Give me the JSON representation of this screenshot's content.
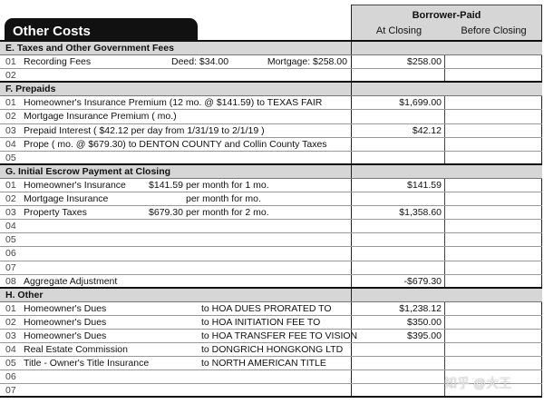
{
  "title": "Other Costs",
  "columns": {
    "group": "Borrower-Paid",
    "at_closing": "At Closing",
    "before_closing": "Before Closing"
  },
  "sections": [
    {
      "title": "E. Taxes and Other Government Fees",
      "rows": [
        {
          "num": "01",
          "label": "Recording Fees",
          "deed": "Deed: $34.00",
          "mortgage": "Mortgage: $258.00",
          "at_closing": "$258.00"
        },
        {
          "num": "02"
        }
      ]
    },
    {
      "title": "F. Prepaids",
      "rows": [
        {
          "num": "01",
          "label": "Homeowner's Insurance Premium (12 mo. @ $141.59) to TEXAS FAIR",
          "at_closing": "$1,699.00"
        },
        {
          "num": "02",
          "label": "Mortgage Insurance Premium (   mo.)"
        },
        {
          "num": "03",
          "label": "Prepaid Interest ( $42.12 per day from 1/31/19 to 2/1/19 )",
          "at_closing": "$42.12"
        },
        {
          "num": "04",
          "label": "Prope (   mo. @ $679.30) to DENTON COUNTY and Collin County Taxes"
        },
        {
          "num": "05"
        }
      ]
    },
    {
      "title": "G. Initial Escrow Payment at Closing",
      "rows": [
        {
          "num": "01",
          "label": "Homeowner's Insurance",
          "rate": "$141.59",
          "per": "per month for 1 mo.",
          "at_closing": "$141.59"
        },
        {
          "num": "02",
          "label": "Mortgage Insurance",
          "per": "per month for    mo."
        },
        {
          "num": "03",
          "label": "Property Taxes",
          "rate": "$679.30",
          "per": "per month for 2 mo.",
          "at_closing": "$1,358.60"
        },
        {
          "num": "04"
        },
        {
          "num": "05"
        },
        {
          "num": "06"
        },
        {
          "num": "07"
        },
        {
          "num": "08",
          "label": "Aggregate Adjustment",
          "at_closing": "-$679.30"
        }
      ]
    },
    {
      "title": "H. Other",
      "rows": [
        {
          "num": "01",
          "label": "Homeowner's Dues",
          "payee": "to HOA DUES PRORATED TO",
          "at_closing": "$1,238.12"
        },
        {
          "num": "02",
          "label": "Homeowner's Dues",
          "payee": "to HOA INITIATION FEE TO",
          "at_closing": "$350.00"
        },
        {
          "num": "03",
          "label": "Homeowner's Dues",
          "payee": "to HOA TRANSFER FEE TO VISION",
          "at_closing": "$395.00"
        },
        {
          "num": "04",
          "label": "Real Estate Commission",
          "payee": "to DONGRICH HONGKONG LTD"
        },
        {
          "num": "05",
          "label": "Title - Owner's Title Insurance",
          "payee": "to NORTH AMERICAN TITLE"
        },
        {
          "num": "06"
        },
        {
          "num": "07"
        }
      ]
    }
  ],
  "watermark": "知乎 @大王"
}
